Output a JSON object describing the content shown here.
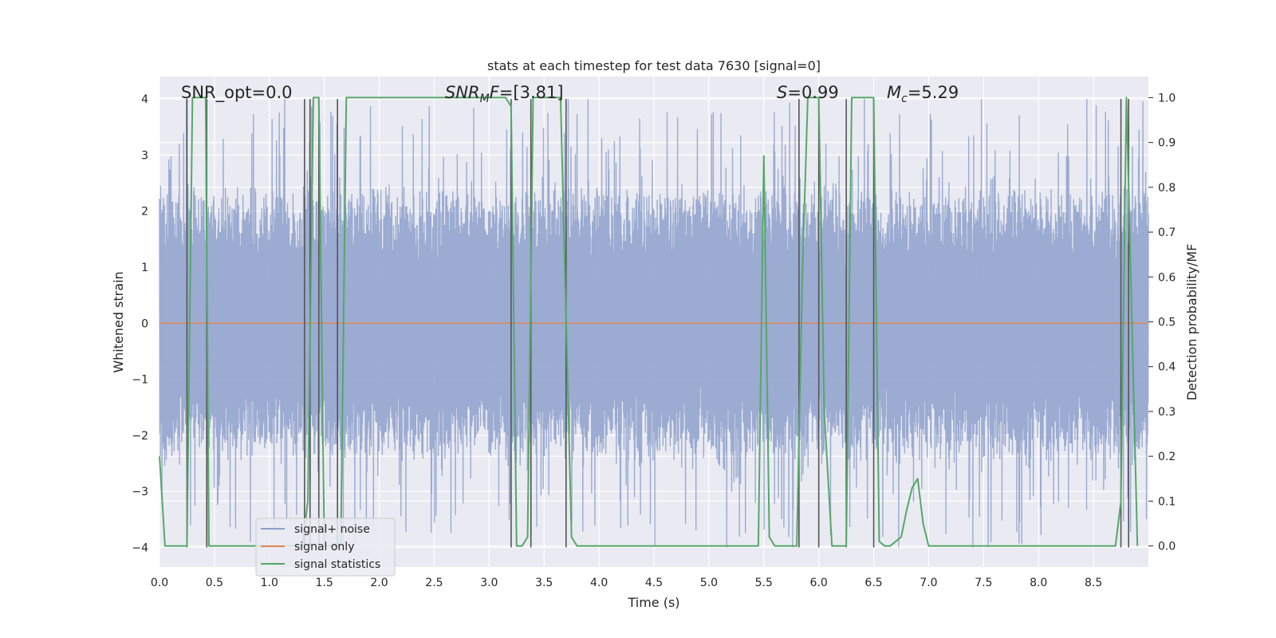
{
  "chart_data": {
    "type": "line",
    "title": "stats at each timestep for test data 7630 [signal=0]",
    "xlabel": "Time (s)",
    "ylabel": "Whitened strain",
    "ylabel_right": "Detection probability/MF",
    "xlim": [
      0.0,
      9.0
    ],
    "ylim": [
      -4.35,
      4.4
    ],
    "ylim_right": [
      -0.047,
      1.047
    ],
    "xticks": [
      0.0,
      0.5,
      1.0,
      1.5,
      2.0,
      2.5,
      3.0,
      3.5,
      4.0,
      4.5,
      5.0,
      5.5,
      6.0,
      6.5,
      7.0,
      7.5,
      8.0,
      8.5
    ],
    "xtick_labels": [
      "0.0",
      "0.5",
      "1.0",
      "1.5",
      "2.0",
      "2.5",
      "3.0",
      "3.5",
      "4.0",
      "4.5",
      "5.0",
      "5.5",
      "6.0",
      "6.5",
      "7.0",
      "7.5",
      "8.0",
      "8.5"
    ],
    "yticks": [
      -4,
      -3,
      -2,
      -1,
      0,
      1,
      2,
      3,
      4
    ],
    "ytick_labels": [
      "−4",
      "−3",
      "−2",
      "−1",
      "0",
      "1",
      "2",
      "3",
      "4"
    ],
    "yticks_right": [
      0.0,
      0.1,
      0.2,
      0.3,
      0.4,
      0.5,
      0.6,
      0.7,
      0.8,
      0.9,
      1.0
    ],
    "ytick_right_labels": [
      "0.0",
      "0.1",
      "0.2",
      "0.3",
      "0.4",
      "0.5",
      "0.6",
      "0.7",
      "0.8",
      "0.9",
      "1.0"
    ],
    "annotations": [
      "SNR_opt=0.0",
      "SNR_MF=[3.81]",
      "S=0.99",
      "M_c=5.29"
    ],
    "legend": {
      "placement": "lower-left",
      "entries": [
        {
          "label": "signal+ noise",
          "color": "#8da0cb"
        },
        {
          "label": "signal only",
          "color": "#dd8452"
        },
        {
          "label": "signal statistics",
          "color": "#55a868"
        }
      ]
    },
    "series": [
      {
        "name": "signal+ noise",
        "kind": "noise",
        "color": "#8da0cb",
        "x_range": [
          0.0,
          9.0
        ],
        "typical_peak": 2.3,
        "max_abs": 4.0
      },
      {
        "name": "signal only",
        "kind": "line",
        "color": "#dd8452",
        "x": [
          0.0,
          9.0
        ],
        "y": [
          0.0,
          0.0
        ]
      },
      {
        "name": "signal statistics",
        "axis": "right",
        "color": "#55a868",
        "x": [
          0.0,
          0.05,
          0.25,
          0.3,
          0.35,
          0.42,
          0.45,
          0.5,
          1.15,
          1.3,
          1.35,
          1.4,
          1.45,
          1.5,
          1.55,
          1.65,
          1.7,
          1.8,
          2.0,
          3.1,
          3.15,
          3.2,
          3.25,
          3.3,
          3.35,
          3.4,
          3.45,
          3.5,
          3.65,
          3.75,
          3.8,
          3.85,
          4.0,
          5.0,
          5.45,
          5.5,
          5.55,
          5.6,
          5.7,
          5.8,
          5.85,
          5.9,
          5.95,
          6.0,
          6.05,
          6.12,
          6.25,
          6.3,
          6.35,
          6.4,
          6.5,
          6.55,
          6.6,
          6.65,
          6.7,
          6.75,
          6.8,
          6.85,
          6.9,
          6.95,
          7.0,
          7.05,
          7.1,
          7.3,
          8.0,
          8.2,
          8.7,
          8.75,
          8.8,
          8.85,
          8.9
        ],
        "y": [
          0.2,
          0.0,
          0.0,
          1.0,
          1.0,
          1.0,
          0.0,
          0.0,
          0.0,
          0.0,
          0.1,
          1.0,
          1.0,
          0.0,
          0.0,
          0.0,
          1.0,
          1.0,
          1.0,
          1.0,
          1.0,
          0.98,
          0.0,
          0.0,
          0.02,
          1.0,
          1.0,
          1.0,
          1.0,
          0.02,
          0.0,
          0.0,
          0.0,
          0.0,
          0.0,
          0.87,
          0.02,
          0.0,
          0.0,
          0.0,
          0.6,
          1.0,
          1.0,
          1.0,
          0.3,
          0.0,
          0.0,
          1.0,
          1.0,
          1.0,
          1.0,
          0.01,
          0.0,
          0.0,
          0.01,
          0.02,
          0.08,
          0.13,
          0.15,
          0.05,
          0.0,
          0.0,
          0.0,
          0.0,
          0.0,
          0.0,
          0.0,
          0.1,
          1.0,
          0.5,
          0.0
        ]
      },
      {
        "name": "window markers",
        "kind": "vlines",
        "color": "#555555",
        "x": [
          0.25,
          0.43,
          1.32,
          1.37,
          1.45,
          1.62,
          3.2,
          3.38,
          3.7,
          5.82,
          6.0,
          6.25,
          6.5,
          8.75,
          8.82
        ],
        "y_range": [
          -4.0,
          4.0
        ]
      }
    ]
  }
}
